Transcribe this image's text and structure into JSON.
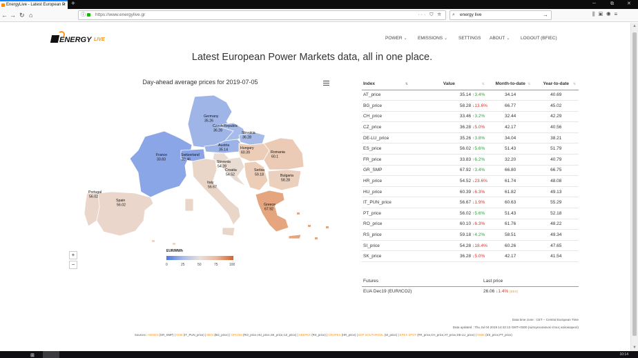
{
  "browser": {
    "tab_title": "EnergyLive - Latest European P",
    "tab_close": "×",
    "new_tab": "+",
    "url": "https://www.energylive.gr",
    "url_actions": "··· ⛉ ☆",
    "search_value": "energy live",
    "win_min": "─",
    "win_max": "⧉",
    "win_close": "✕"
  },
  "taskbar": {
    "clock": "10:14"
  },
  "nav": {
    "items": [
      {
        "label": "POWER",
        "has_menu": true
      },
      {
        "label": "EMISSIONS",
        "has_menu": true
      },
      {
        "label": "SETTINGS",
        "has_menu": false
      },
      {
        "label": "ABOUT",
        "has_menu": true
      },
      {
        "label": "LOGOUT (BFIEC)",
        "has_menu": false
      }
    ],
    "chevron": "⌄"
  },
  "logo": {
    "word": "ENERGY",
    "sub": "LIVE",
    "brand_color": "#f7941d"
  },
  "headline": "Latest European Power Markets data, all in one place.",
  "map": {
    "title": "Day-ahead average prices for 2019-07-05",
    "zoom_in": "+",
    "zoom_out": "−",
    "legend_title": "EUR/MWh",
    "legend_ticks": [
      "0",
      "25",
      "50",
      "75",
      "100"
    ],
    "countries": [
      {
        "name": "Germany",
        "value": "35.26",
        "color": "#9fb5e8"
      },
      {
        "name": "Czech Republic",
        "value": "36.28",
        "color": "#a6bbe8"
      },
      {
        "name": "Slovakia",
        "value": "36.28",
        "color": "#a6bbe8"
      },
      {
        "name": "France",
        "value": "33.83",
        "color": "#8ba6e6"
      },
      {
        "name": "Switzerland",
        "value": "33.46",
        "color": "#8aa4e5"
      },
      {
        "name": "Austria",
        "value": "35.14",
        "color": "#9cb3e8"
      },
      {
        "name": "Hungary",
        "value": "60.39",
        "color": "#ebcdb8"
      },
      {
        "name": "Romania",
        "value": "60.1",
        "color": "#ebcbb5"
      },
      {
        "name": "Slovenia",
        "value": "54.28",
        "color": "#e9dcd3"
      },
      {
        "name": "Croatia",
        "value": "54.52",
        "color": "#e9dcd3"
      },
      {
        "name": "Serbia",
        "value": "59.18",
        "color": "#ebcdb8"
      },
      {
        "name": "Bulgaria",
        "value": "58.28",
        "color": "#ead0bd"
      },
      {
        "name": "Italy",
        "value": "56.67",
        "color": "#ead6c8"
      },
      {
        "name": "Portugal",
        "value": "56.02",
        "color": "#ead6ca"
      },
      {
        "name": "Spain",
        "value": "56.02",
        "color": "#ead6ca"
      },
      {
        "name": "Greece",
        "value": "67.92",
        "color": "#e4a57f"
      }
    ]
  },
  "table": {
    "headers": [
      "Index",
      "Value",
      "Month-to-date",
      "Year-to-date"
    ],
    "sort_glyph": "⇅",
    "rows": [
      {
        "index": "AT_price",
        "value": "35.14",
        "change": "3.4%",
        "dir": "up",
        "mtd": "34.14",
        "ytd": "40.69"
      },
      {
        "index": "BG_price",
        "value": "58.28",
        "change": "13.6%",
        "dir": "down",
        "mtd": "66.77",
        "ytd": "45.02"
      },
      {
        "index": "CH_price",
        "value": "33.46",
        "change": "3.2%",
        "dir": "up",
        "mtd": "32.44",
        "ytd": "42.29"
      },
      {
        "index": "CZ_price",
        "value": "36.28",
        "change": "5.0%",
        "dir": "down",
        "mtd": "42.17",
        "ytd": "40.56"
      },
      {
        "index": "DE-LU_price",
        "value": "35.26",
        "change": "3.8%",
        "dir": "up",
        "mtd": "34.04",
        "ytd": "38.21"
      },
      {
        "index": "ES_price",
        "value": "56.02",
        "change": "5.6%",
        "dir": "up",
        "mtd": "51.43",
        "ytd": "51.79"
      },
      {
        "index": "FR_price",
        "value": "33.83",
        "change": "6.2%",
        "dir": "up",
        "mtd": "32.20",
        "ytd": "40.79"
      },
      {
        "index": "GR_SMP",
        "value": "67.92",
        "change": "3.4%",
        "dir": "up",
        "mtd": "66.80",
        "ytd": "66.75"
      },
      {
        "index": "HR_price",
        "value": "54.52",
        "change": "23.6%",
        "dir": "down",
        "mtd": "61.74",
        "ytd": "48.08"
      },
      {
        "index": "HU_price",
        "value": "60.39",
        "change": "6.3%",
        "dir": "down",
        "mtd": "61.82",
        "ytd": "49.13"
      },
      {
        "index": "IT_PUN_price",
        "value": "56.67",
        "change": "1.9%",
        "dir": "down",
        "mtd": "60.63",
        "ytd": "55.29"
      },
      {
        "index": "PT_price",
        "value": "56.02",
        "change": "5.6%",
        "dir": "up",
        "mtd": "51.43",
        "ytd": "52.18"
      },
      {
        "index": "RO_price",
        "value": "60.10",
        "change": "6.3%",
        "dir": "down",
        "mtd": "61.76",
        "ytd": "48.22"
      },
      {
        "index": "RS_price",
        "value": "59.18",
        "change": "4.2%",
        "dir": "up",
        "mtd": "58.51",
        "ytd": "49.34"
      },
      {
        "index": "SI_price",
        "value": "54.28",
        "change": "18.4%",
        "dir": "down",
        "mtd": "60.26",
        "ytd": "47.65"
      },
      {
        "index": "SK_price",
        "value": "36.28",
        "change": "5.0%",
        "dir": "down",
        "mtd": "42.17",
        "ytd": "41.54"
      }
    ]
  },
  "futures": {
    "headers": [
      "Futures",
      "Last price"
    ],
    "rows": [
      {
        "name": "EUA Dec19 (EUR/tCO2)",
        "price": "26.06",
        "change": "1.4%",
        "dir": "down",
        "source": "(EEX)"
      }
    ]
  },
  "meta": {
    "timezone": "Data time zone : CET – Central European Time",
    "updated": "Data updated : Thu Jul 04 2019 14:42:13 GMT+0300 (Ιώτογενοσιανού έτους καλοκαιριού)"
  },
  "sources": [
    {
      "org": "Sources : ",
      "text": ""
    },
    {
      "org": "HENEX",
      "text": " (GR_SMP) | "
    },
    {
      "org": "GME",
      "text": " (IT_PUN_price) | "
    },
    {
      "org": "IBEX",
      "text": " (BG_price) | "
    },
    {
      "org": "OPCOM",
      "text": " (RO_price,HU_price,SK_price,CZ_price) | "
    },
    {
      "org": "SEEPEX",
      "text": " (RS_price) | "
    },
    {
      "org": "CROPEX",
      "text": " (HR_price) | "
    },
    {
      "org": "BSP SOUTHPOOL",
      "text": " (SI_price) | "
    },
    {
      "org": "EPEX SPOT",
      "text": " (FR_price,CH_price,AT_price,DE-LU_price) | "
    },
    {
      "org": "OMIE",
      "text": " (ES_price,PT_price)"
    }
  ]
}
